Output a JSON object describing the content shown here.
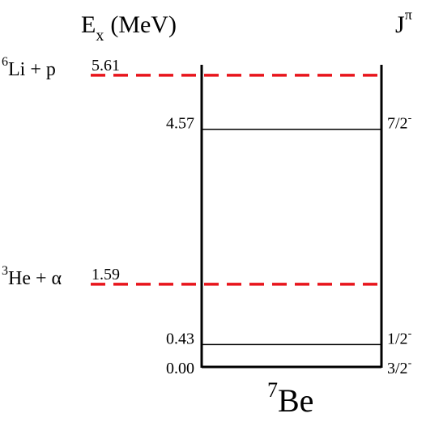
{
  "header": {
    "energy_axis": {
      "symbol": "E",
      "subscript": "x",
      "unit": "(MeV)"
    },
    "spin_axis": {
      "symbol": "J",
      "superscript": "π"
    }
  },
  "nucleus": {
    "mass": "7",
    "symbol": "Be"
  },
  "levels": [
    {
      "energy": "4.57",
      "spin": "7/2",
      "parity": "-"
    },
    {
      "energy": "0.43",
      "spin": "1/2",
      "parity": "-"
    },
    {
      "energy": "0.00",
      "spin": "3/2",
      "parity": "-"
    }
  ],
  "thresholds": [
    {
      "mass": "6",
      "name": "Li + p",
      "energy": "5.61"
    },
    {
      "mass": "3",
      "name": "He + α",
      "energy": "1.59"
    }
  ]
}
